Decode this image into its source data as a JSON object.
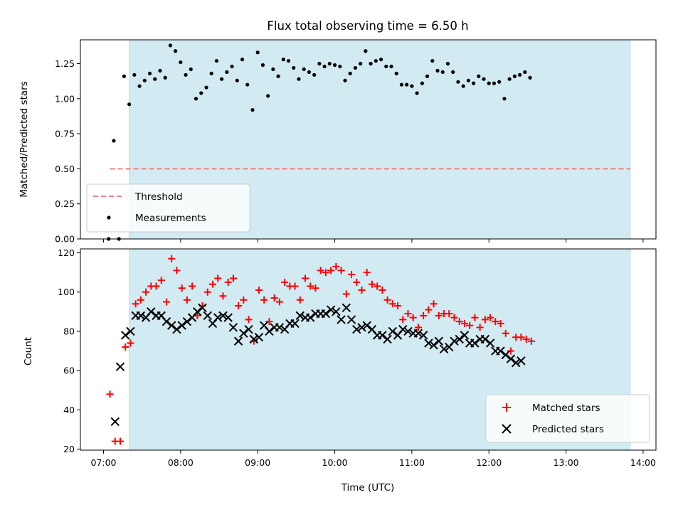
{
  "chart_data": [
    {
      "type": "scatter",
      "panel": "top",
      "title": "Flux total observing time = 6.50 h",
      "xlabel": "",
      "ylabel": "Matched/Predicted stars",
      "ylim": [
        0,
        1.42
      ],
      "yticks": [
        0,
        0.25,
        0.5,
        0.75,
        1.0,
        1.25
      ],
      "ytick_labels": [
        "0.00",
        "0.25",
        "0.50",
        "0.75",
        "1.00",
        "1.25"
      ],
      "xlim": [
        "06:42",
        "14:10"
      ],
      "shaded_interval": [
        "07:20",
        "13:50"
      ],
      "shade_color": "#add8e6",
      "threshold": {
        "name": "Threshold",
        "value": 0.5,
        "x": [
          "07:05",
          "13:50"
        ],
        "color": "#f08080",
        "style": "dashed"
      },
      "legend": {
        "position": "lower-left",
        "entries": [
          "Threshold",
          "Measurements"
        ]
      },
      "series": [
        {
          "name": "Measurements",
          "color": "#000000",
          "marker": "dot",
          "points": [
            [
              "07:04",
              0.0
            ],
            [
              "07:08",
              0.7
            ],
            [
              "07:12",
              0.0
            ],
            [
              "07:16",
              1.16
            ],
            [
              "07:20",
              0.96
            ],
            [
              "07:24",
              1.17
            ],
            [
              "07:28",
              1.09
            ],
            [
              "07:32",
              1.13
            ],
            [
              "07:36",
              1.18
            ],
            [
              "07:40",
              1.14
            ],
            [
              "07:44",
              1.2
            ],
            [
              "07:48",
              1.15
            ],
            [
              "07:52",
              1.38
            ],
            [
              "07:56",
              1.34
            ],
            [
              "08:00",
              1.26
            ],
            [
              "08:04",
              1.17
            ],
            [
              "08:08",
              1.21
            ],
            [
              "08:12",
              1.0
            ],
            [
              "08:16",
              1.04
            ],
            [
              "08:20",
              1.08
            ],
            [
              "08:24",
              1.18
            ],
            [
              "08:28",
              1.27
            ],
            [
              "08:32",
              1.14
            ],
            [
              "08:36",
              1.19
            ],
            [
              "08:40",
              1.23
            ],
            [
              "08:44",
              1.13
            ],
            [
              "08:48",
              1.28
            ],
            [
              "08:52",
              1.1
            ],
            [
              "08:56",
              0.92
            ],
            [
              "09:00",
              1.33
            ],
            [
              "09:04",
              1.24
            ],
            [
              "09:08",
              1.02
            ],
            [
              "09:12",
              1.21
            ],
            [
              "09:16",
              1.16
            ],
            [
              "09:20",
              1.28
            ],
            [
              "09:24",
              1.27
            ],
            [
              "09:28",
              1.22
            ],
            [
              "09:32",
              1.14
            ],
            [
              "09:36",
              1.21
            ],
            [
              "09:40",
              1.19
            ],
            [
              "09:44",
              1.17
            ],
            [
              "09:48",
              1.25
            ],
            [
              "09:52",
              1.23
            ],
            [
              "09:56",
              1.25
            ],
            [
              "10:00",
              1.24
            ],
            [
              "10:04",
              1.23
            ],
            [
              "10:08",
              1.13
            ],
            [
              "10:12",
              1.18
            ],
            [
              "10:16",
              1.22
            ],
            [
              "10:20",
              1.25
            ],
            [
              "10:24",
              1.34
            ],
            [
              "10:28",
              1.25
            ],
            [
              "10:32",
              1.27
            ],
            [
              "10:36",
              1.28
            ],
            [
              "10:40",
              1.23
            ],
            [
              "10:44",
              1.23
            ],
            [
              "10:48",
              1.18
            ],
            [
              "10:52",
              1.1
            ],
            [
              "10:56",
              1.1
            ],
            [
              "11:00",
              1.09
            ],
            [
              "11:04",
              1.04
            ],
            [
              "11:08",
              1.11
            ],
            [
              "11:12",
              1.16
            ],
            [
              "11:16",
              1.27
            ],
            [
              "11:20",
              1.2
            ],
            [
              "11:24",
              1.19
            ],
            [
              "11:28",
              1.25
            ],
            [
              "11:32",
              1.19
            ],
            [
              "11:36",
              1.12
            ],
            [
              "11:40",
              1.09
            ],
            [
              "11:44",
              1.13
            ],
            [
              "11:48",
              1.11
            ],
            [
              "11:52",
              1.16
            ],
            [
              "11:56",
              1.14
            ],
            [
              "12:00",
              1.11
            ],
            [
              "12:04",
              1.11
            ],
            [
              "12:08",
              1.12
            ],
            [
              "12:12",
              1.0
            ],
            [
              "12:16",
              1.14
            ],
            [
              "12:20",
              1.16
            ],
            [
              "12:24",
              1.17
            ],
            [
              "12:28",
              1.19
            ],
            [
              "12:32",
              1.15
            ]
          ]
        }
      ]
    },
    {
      "type": "scatter",
      "panel": "bottom",
      "xlabel": "Time (UTC)",
      "ylabel": "Count",
      "ylim": [
        19.5,
        122
      ],
      "yticks": [
        20,
        40,
        60,
        80,
        100,
        120
      ],
      "ytick_labels": [
        "20",
        "40",
        "60",
        "80",
        "100",
        "120"
      ],
      "xlim": [
        "06:42",
        "14:10"
      ],
      "xticks": [
        "07:00",
        "08:00",
        "09:00",
        "10:00",
        "11:00",
        "12:00",
        "13:00",
        "14:00"
      ],
      "xtick_labels": [
        "07:00",
        "08:00",
        "09:00",
        "10:00",
        "11:00",
        "12:00",
        "13:00",
        "14:00"
      ],
      "shaded_interval": [
        "07:20",
        "13:50"
      ],
      "shade_color": "#add8e6",
      "legend": {
        "position": "lower-right",
        "entries": [
          "Matched stars",
          "Predicted stars"
        ]
      },
      "series": [
        {
          "name": "Matched stars",
          "color": "#ff0000",
          "marker": "plus",
          "points": [
            [
              "07:05",
              48
            ],
            [
              "07:09",
              24
            ],
            [
              "07:13",
              24
            ],
            [
              "07:17",
              72
            ],
            [
              "07:21",
              74
            ],
            [
              "07:25",
              94
            ],
            [
              "07:29",
              96
            ],
            [
              "07:33",
              100
            ],
            [
              "07:37",
              103
            ],
            [
              "07:41",
              103
            ],
            [
              "07:45",
              106
            ],
            [
              "07:49",
              95
            ],
            [
              "07:53",
              117
            ],
            [
              "07:57",
              111
            ],
            [
              "08:01",
              102
            ],
            [
              "08:05",
              96
            ],
            [
              "08:09",
              103
            ],
            [
              "08:13",
              88
            ],
            [
              "08:17",
              93
            ],
            [
              "08:21",
              100
            ],
            [
              "08:25",
              104
            ],
            [
              "08:29",
              107
            ],
            [
              "08:33",
              98
            ],
            [
              "08:37",
              105
            ],
            [
              "08:41",
              107
            ],
            [
              "08:45",
              93
            ],
            [
              "08:49",
              96
            ],
            [
              "08:53",
              86
            ],
            [
              "08:57",
              75
            ],
            [
              "09:01",
              101
            ],
            [
              "09:05",
              96
            ],
            [
              "09:09",
              85
            ],
            [
              "09:13",
              97
            ],
            [
              "09:17",
              95
            ],
            [
              "09:21",
              105
            ],
            [
              "09:25",
              103
            ],
            [
              "09:29",
              103
            ],
            [
              "09:33",
              96
            ],
            [
              "09:37",
              107
            ],
            [
              "09:41",
              103
            ],
            [
              "09:45",
              102
            ],
            [
              "09:49",
              111
            ],
            [
              "09:53",
              110
            ],
            [
              "09:57",
              111
            ],
            [
              "10:01",
              113
            ],
            [
              "10:05",
              111
            ],
            [
              "10:09",
              99
            ],
            [
              "10:13",
              109
            ],
            [
              "10:17",
              105
            ],
            [
              "10:21",
              101
            ],
            [
              "10:25",
              110
            ],
            [
              "10:29",
              104
            ],
            [
              "10:33",
              103
            ],
            [
              "10:37",
              101
            ],
            [
              "10:41",
              96
            ],
            [
              "10:45",
              94
            ],
            [
              "10:49",
              93
            ],
            [
              "10:53",
              86
            ],
            [
              "10:57",
              89
            ],
            [
              "11:01",
              87
            ],
            [
              "11:05",
              82
            ],
            [
              "11:09",
              88
            ],
            [
              "11:13",
              91
            ],
            [
              "11:17",
              94
            ],
            [
              "11:21",
              88
            ],
            [
              "11:25",
              89
            ],
            [
              "11:29",
              89
            ],
            [
              "11:33",
              87
            ],
            [
              "11:37",
              85
            ],
            [
              "11:41",
              84
            ],
            [
              "11:45",
              83
            ],
            [
              "11:49",
              87
            ],
            [
              "11:53",
              82
            ],
            [
              "11:57",
              86
            ],
            [
              "12:01",
              87
            ],
            [
              "12:05",
              85
            ],
            [
              "12:09",
              84
            ],
            [
              "12:13",
              79
            ],
            [
              "12:17",
              70
            ],
            [
              "12:21",
              77
            ],
            [
              "12:25",
              77
            ],
            [
              "12:29",
              76
            ],
            [
              "12:33",
              75
            ]
          ]
        },
        {
          "name": "Predicted stars",
          "color": "#000000",
          "marker": "x",
          "points": [
            [
              "07:09",
              34
            ],
            [
              "07:13",
              62
            ],
            [
              "07:17",
              78
            ],
            [
              "07:21",
              80
            ],
            [
              "07:25",
              88
            ],
            [
              "07:29",
              88
            ],
            [
              "07:33",
              87
            ],
            [
              "07:37",
              90
            ],
            [
              "07:41",
              88
            ],
            [
              "07:45",
              88
            ],
            [
              "07:49",
              85
            ],
            [
              "07:53",
              83
            ],
            [
              "07:57",
              81
            ],
            [
              "08:01",
              83
            ],
            [
              "08:05",
              85
            ],
            [
              "08:09",
              87
            ],
            [
              "08:13",
              90
            ],
            [
              "08:17",
              92
            ],
            [
              "08:21",
              88
            ],
            [
              "08:25",
              84
            ],
            [
              "08:29",
              87
            ],
            [
              "08:33",
              88
            ],
            [
              "08:37",
              87
            ],
            [
              "08:41",
              82
            ],
            [
              "08:45",
              75
            ],
            [
              "08:49",
              79
            ],
            [
              "08:53",
              81
            ],
            [
              "08:57",
              76
            ],
            [
              "09:01",
              77
            ],
            [
              "09:05",
              83
            ],
            [
              "09:09",
              80
            ],
            [
              "09:13",
              82
            ],
            [
              "09:17",
              82
            ],
            [
              "09:21",
              81
            ],
            [
              "09:25",
              84
            ],
            [
              "09:29",
              84
            ],
            [
              "09:33",
              88
            ],
            [
              "09:37",
              87
            ],
            [
              "09:41",
              87
            ],
            [
              "09:45",
              89
            ],
            [
              "09:49",
              89
            ],
            [
              "09:53",
              89
            ],
            [
              "09:57",
              91
            ],
            [
              "10:01",
              90
            ],
            [
              "10:05",
              86
            ],
            [
              "10:09",
              92
            ],
            [
              "10:13",
              86
            ],
            [
              "10:17",
              81
            ],
            [
              "10:21",
              82
            ],
            [
              "10:25",
              83
            ],
            [
              "10:29",
              81
            ],
            [
              "10:33",
              78
            ],
            [
              "10:37",
              78
            ],
            [
              "10:41",
              76
            ],
            [
              "10:45",
              80
            ],
            [
              "10:49",
              78
            ],
            [
              "10:53",
              81
            ],
            [
              "10:57",
              80
            ],
            [
              "11:01",
              79
            ],
            [
              "11:05",
              79
            ],
            [
              "11:09",
              78
            ],
            [
              "11:13",
              74
            ],
            [
              "11:17",
              73
            ],
            [
              "11:21",
              75
            ],
            [
              "11:25",
              71
            ],
            [
              "11:29",
              72
            ],
            [
              "11:33",
              75
            ],
            [
              "11:37",
              76
            ],
            [
              "11:41",
              78
            ],
            [
              "11:45",
              74
            ],
            [
              "11:49",
              74
            ],
            [
              "11:53",
              76
            ],
            [
              "11:57",
              76
            ],
            [
              "12:01",
              74
            ],
            [
              "12:05",
              70
            ],
            [
              "12:09",
              70
            ],
            [
              "12:13",
              68
            ],
            [
              "12:17",
              66
            ],
            [
              "12:21",
              64
            ],
            [
              "12:25",
              65
            ]
          ]
        }
      ]
    }
  ]
}
